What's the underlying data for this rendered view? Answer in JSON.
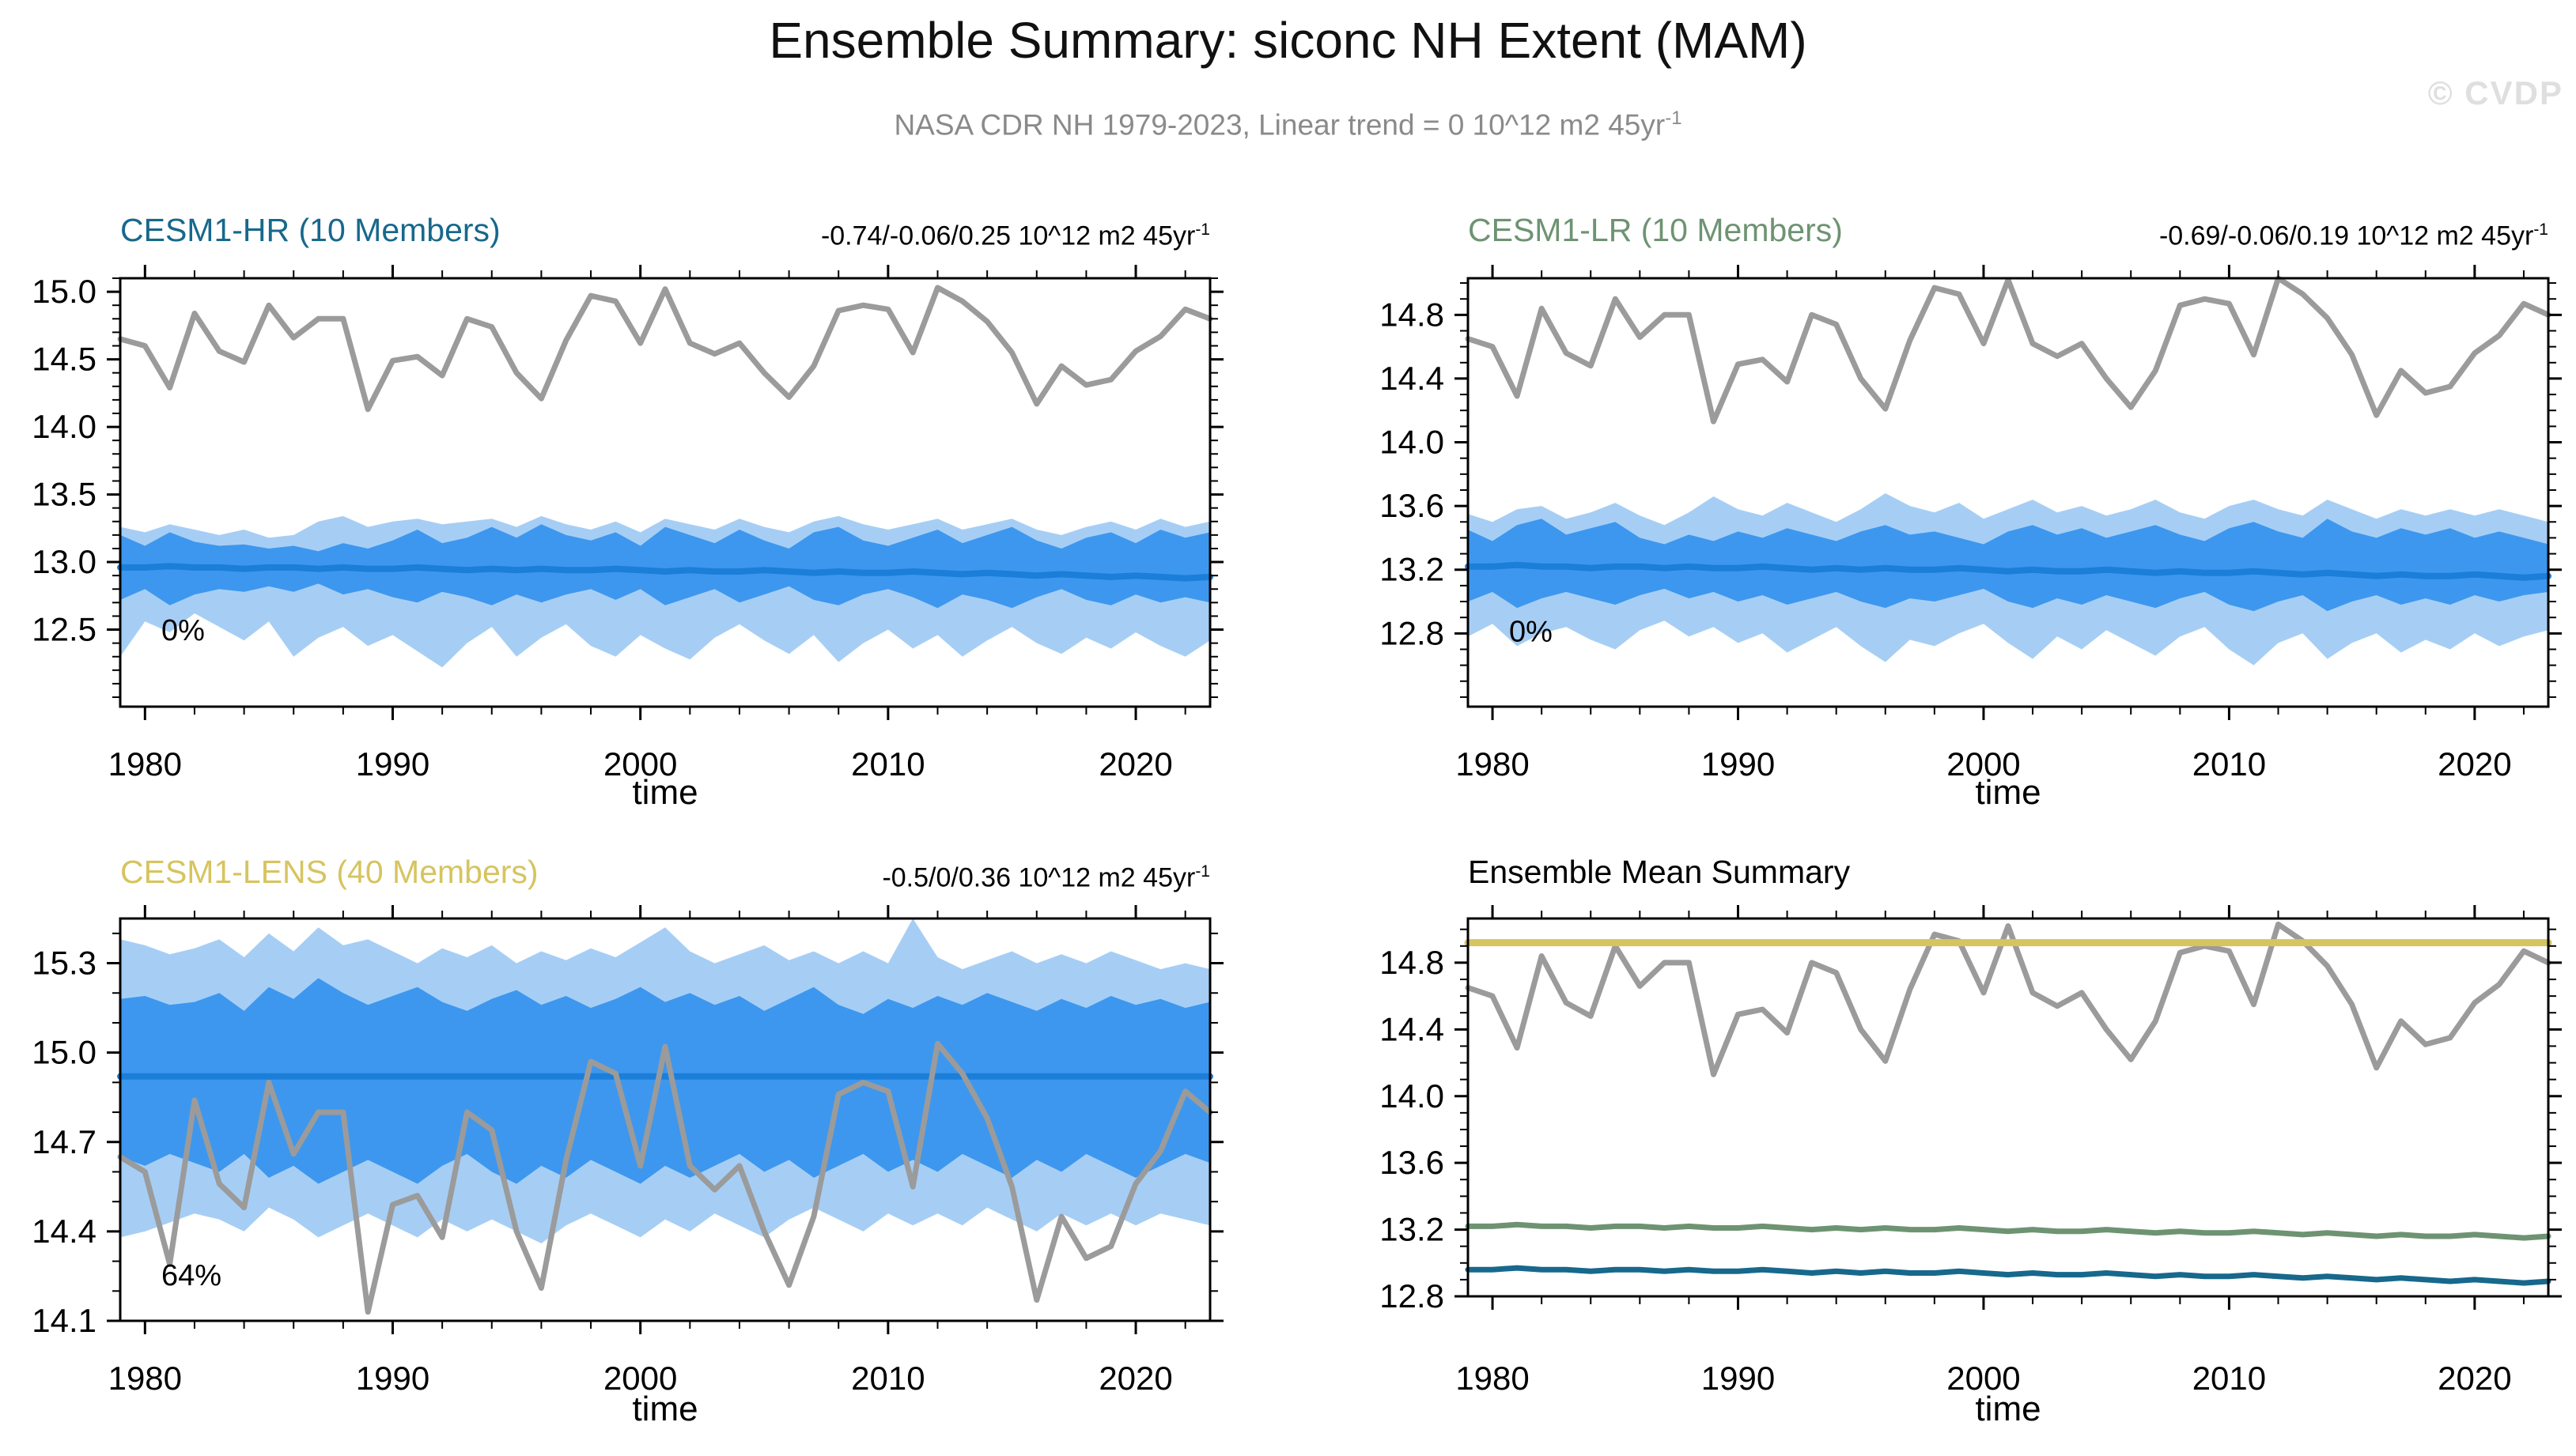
{
  "header": {
    "title": "Ensemble Summary: siconc NH Extent (MAM)",
    "subtitle_main": "NASA CDR NH 1979-2023, Linear trend = 0 10^12 m2 45yr",
    "subtitle_sup": "-1",
    "watermark": "© CVDP"
  },
  "colors": {
    "band_outer": "#a6cef5",
    "band_inner": "#3d97ee",
    "ensemble_mean": "#1b7ed9",
    "observation": "#9b9b9b",
    "frame": "#000000",
    "hr": "#17688c",
    "lr": "#6e9372",
    "lens": "#d6c45f",
    "subtitle": "#8a8a8a",
    "watermark": "#dfdfdf"
  },
  "chart_data": {
    "type": "line",
    "x_label": "time",
    "year_start": 1979,
    "year_end": 2023,
    "x_ticks": [
      1980,
      1990,
      2000,
      2010,
      2020
    ],
    "obs_name": "NASA CDR NH",
    "obs": [
      14.65,
      14.6,
      14.29,
      14.84,
      14.56,
      14.48,
      14.9,
      14.66,
      14.8,
      14.8,
      14.13,
      14.49,
      14.52,
      14.38,
      14.8,
      14.74,
      14.4,
      14.21,
      14.64,
      14.97,
      14.93,
      14.62,
      15.02,
      14.62,
      14.54,
      14.62,
      14.4,
      14.22,
      14.45,
      14.86,
      14.9,
      14.87,
      14.55,
      15.03,
      14.93,
      14.78,
      14.55,
      14.17,
      14.45,
      14.31,
      14.35,
      14.56,
      14.67,
      14.87,
      14.8
    ],
    "panels": [
      {
        "id": "hr",
        "title": "CESM1-HR (10 Members)",
        "title_color": "#17688c",
        "trend_main": "-0.74/-0.06/0.25 10^12 m2 45yr",
        "trend_sup": "-1",
        "annotation": {
          "text": "0%",
          "y": 12.42
        },
        "ylim": [
          11.93,
          15.1
        ],
        "yticks": [
          12.5,
          13.0,
          13.5,
          14.0,
          14.5,
          15.0
        ],
        "ytick_labels": [
          "12.5",
          "13.0",
          "13.5",
          "14.0",
          "14.5",
          "15.0"
        ],
        "mean": [
          12.96,
          12.96,
          12.97,
          12.96,
          12.96,
          12.95,
          12.96,
          12.96,
          12.95,
          12.96,
          12.95,
          12.95,
          12.96,
          12.95,
          12.94,
          12.95,
          12.94,
          12.95,
          12.94,
          12.94,
          12.95,
          12.94,
          12.93,
          12.94,
          12.93,
          12.93,
          12.94,
          12.93,
          12.92,
          12.93,
          12.92,
          12.92,
          12.93,
          12.92,
          12.91,
          12.92,
          12.91,
          12.9,
          12.91,
          12.9,
          12.89,
          12.9,
          12.89,
          12.88,
          12.89
        ],
        "inner_top": [
          13.2,
          13.12,
          13.22,
          13.15,
          13.12,
          13.13,
          13.1,
          13.12,
          13.08,
          13.14,
          13.1,
          13.16,
          13.24,
          13.14,
          13.18,
          13.26,
          13.18,
          13.28,
          13.2,
          13.16,
          13.22,
          13.12,
          13.26,
          13.2,
          13.14,
          13.24,
          13.16,
          13.1,
          13.22,
          13.26,
          13.16,
          13.12,
          13.18,
          13.24,
          13.14,
          13.2,
          13.26,
          13.16,
          13.1,
          13.18,
          13.22,
          13.14,
          13.24,
          13.18,
          13.22
        ],
        "inner_bot": [
          12.72,
          12.8,
          12.68,
          12.76,
          12.8,
          12.78,
          12.82,
          12.78,
          12.84,
          12.76,
          12.8,
          12.74,
          12.7,
          12.78,
          12.74,
          12.68,
          12.76,
          12.7,
          12.76,
          12.8,
          12.72,
          12.8,
          12.68,
          12.74,
          12.8,
          12.7,
          12.76,
          12.82,
          12.72,
          12.68,
          12.76,
          12.8,
          12.74,
          12.66,
          12.76,
          12.72,
          12.66,
          12.74,
          12.8,
          12.72,
          12.68,
          12.76,
          12.7,
          12.74,
          12.7
        ],
        "outer_top": [
          13.26,
          13.22,
          13.28,
          13.24,
          13.2,
          13.24,
          13.18,
          13.2,
          13.3,
          13.34,
          13.26,
          13.3,
          13.32,
          13.28,
          13.3,
          13.32,
          13.26,
          13.34,
          13.28,
          13.24,
          13.3,
          13.22,
          13.32,
          13.28,
          13.24,
          13.32,
          13.26,
          13.22,
          13.3,
          13.34,
          13.28,
          13.24,
          13.28,
          13.32,
          13.24,
          13.28,
          13.32,
          13.24,
          13.2,
          13.26,
          13.3,
          13.24,
          13.32,
          13.26,
          13.3
        ],
        "outer_bot": [
          12.3,
          12.56,
          12.48,
          12.62,
          12.52,
          12.42,
          12.56,
          12.3,
          12.44,
          12.52,
          12.38,
          12.46,
          12.34,
          12.22,
          12.4,
          12.52,
          12.3,
          12.44,
          12.54,
          12.38,
          12.3,
          12.46,
          12.36,
          12.28,
          12.44,
          12.54,
          12.42,
          12.32,
          12.46,
          12.26,
          12.4,
          12.5,
          12.36,
          12.46,
          12.3,
          12.42,
          12.52,
          12.4,
          12.32,
          12.44,
          12.36,
          12.48,
          12.38,
          12.3,
          12.42
        ]
      },
      {
        "id": "lr",
        "title": "CESM1-LR (10 Members)",
        "title_color": "#6e9372",
        "trend_main": "-0.69/-0.06/0.19 10^12 m2 45yr",
        "trend_sup": "-1",
        "annotation": {
          "text": "0%",
          "y": 12.75
        },
        "ylim": [
          12.34,
          15.03
        ],
        "yticks": [
          12.8,
          13.2,
          13.6,
          14.0,
          14.4,
          14.8
        ],
        "ytick_labels": [
          "12.8",
          "13.2",
          "13.6",
          "14.0",
          "14.4",
          "14.8"
        ],
        "mean": [
          13.22,
          13.22,
          13.23,
          13.22,
          13.22,
          13.21,
          13.22,
          13.22,
          13.21,
          13.22,
          13.21,
          13.21,
          13.22,
          13.21,
          13.2,
          13.21,
          13.2,
          13.21,
          13.2,
          13.2,
          13.21,
          13.2,
          13.19,
          13.2,
          13.19,
          13.19,
          13.2,
          13.19,
          13.18,
          13.19,
          13.18,
          13.18,
          13.19,
          13.18,
          13.17,
          13.18,
          13.17,
          13.16,
          13.17,
          13.16,
          13.16,
          13.17,
          13.16,
          13.15,
          13.16
        ],
        "inner_top": [
          13.45,
          13.38,
          13.48,
          13.52,
          13.42,
          13.46,
          13.5,
          13.4,
          13.36,
          13.42,
          13.38,
          13.44,
          13.4,
          13.46,
          13.42,
          13.38,
          13.44,
          13.48,
          13.42,
          13.44,
          13.4,
          13.36,
          13.44,
          13.48,
          13.42,
          13.46,
          13.4,
          13.44,
          13.48,
          13.42,
          13.38,
          13.46,
          13.5,
          13.44,
          13.4,
          13.52,
          13.44,
          13.4,
          13.46,
          13.42,
          13.46,
          13.4,
          13.44,
          13.4,
          13.36
        ],
        "inner_bot": [
          13.0,
          13.06,
          12.96,
          13.02,
          13.06,
          13.02,
          12.98,
          13.04,
          13.08,
          13.02,
          13.06,
          13.0,
          13.04,
          12.98,
          13.02,
          13.06,
          13.0,
          12.96,
          13.02,
          13.0,
          13.04,
          13.08,
          13.0,
          12.96,
          13.02,
          12.98,
          13.04,
          13.0,
          12.96,
          13.02,
          13.06,
          12.98,
          12.94,
          13.0,
          13.04,
          12.94,
          13.0,
          13.04,
          12.98,
          13.02,
          12.98,
          13.04,
          13.0,
          13.04,
          13.06
        ],
        "outer_top": [
          13.55,
          13.5,
          13.58,
          13.6,
          13.52,
          13.56,
          13.62,
          13.54,
          13.48,
          13.56,
          13.66,
          13.58,
          13.54,
          13.62,
          13.56,
          13.5,
          13.58,
          13.68,
          13.6,
          13.56,
          13.62,
          13.52,
          13.58,
          13.64,
          13.56,
          13.6,
          13.54,
          13.58,
          13.64,
          13.56,
          13.52,
          13.6,
          13.64,
          13.58,
          13.54,
          13.64,
          13.58,
          13.52,
          13.58,
          13.54,
          13.58,
          13.54,
          13.58,
          13.54,
          13.5
        ],
        "outer_bot": [
          12.78,
          12.86,
          12.72,
          12.8,
          12.84,
          12.76,
          12.7,
          12.82,
          12.88,
          12.78,
          12.84,
          12.74,
          12.8,
          12.68,
          12.76,
          12.84,
          12.72,
          12.62,
          12.76,
          12.72,
          12.8,
          12.86,
          12.74,
          12.64,
          12.78,
          12.7,
          12.82,
          12.74,
          12.66,
          12.78,
          12.84,
          12.7,
          12.6,
          12.74,
          12.8,
          12.64,
          12.74,
          12.8,
          12.68,
          12.76,
          12.7,
          12.8,
          12.72,
          12.78,
          12.82
        ]
      },
      {
        "id": "lens",
        "title": "CESM1-LENS (40 Members)",
        "title_color": "#d6c45f",
        "trend_main": "-0.5/0/0.36 10^12 m2 45yr",
        "trend_sup": "-1",
        "annotation": {
          "text": "64%",
          "y": 14.22
        },
        "ylim": [
          14.1,
          15.45
        ],
        "yticks": [
          14.1,
          14.4,
          14.7,
          15.0,
          15.3
        ],
        "ytick_labels": [
          "14.1",
          "14.4",
          "14.7",
          "15.0",
          "15.3"
        ],
        "mean": [
          14.92,
          14.92,
          14.92,
          14.92,
          14.92,
          14.92,
          14.92,
          14.92,
          14.92,
          14.92,
          14.92,
          14.92,
          14.92,
          14.92,
          14.92,
          14.92,
          14.92,
          14.92,
          14.92,
          14.92,
          14.92,
          14.92,
          14.92,
          14.92,
          14.92,
          14.92,
          14.92,
          14.92,
          14.92,
          14.92,
          14.92,
          14.92,
          14.92,
          14.92,
          14.92,
          14.92,
          14.92,
          14.92,
          14.92,
          14.92,
          14.92,
          14.92,
          14.92,
          14.92,
          14.92
        ],
        "inner_top": [
          15.18,
          15.19,
          15.16,
          15.17,
          15.2,
          15.14,
          15.22,
          15.18,
          15.25,
          15.2,
          15.16,
          15.19,
          15.22,
          15.17,
          15.14,
          15.18,
          15.21,
          15.16,
          15.19,
          15.15,
          15.18,
          15.22,
          15.17,
          15.2,
          15.16,
          15.19,
          15.14,
          15.18,
          15.22,
          15.16,
          15.13,
          15.18,
          15.15,
          15.19,
          15.16,
          15.2,
          15.17,
          15.14,
          15.18,
          15.15,
          15.19,
          15.16,
          15.18,
          15.15,
          15.17
        ],
        "inner_bot": [
          14.65,
          14.62,
          14.66,
          14.63,
          14.6,
          14.66,
          14.58,
          14.62,
          14.56,
          14.6,
          14.64,
          14.6,
          14.56,
          14.62,
          14.66,
          14.6,
          14.56,
          14.62,
          14.58,
          14.64,
          14.6,
          14.56,
          14.62,
          14.58,
          14.62,
          14.66,
          14.6,
          14.64,
          14.58,
          14.62,
          14.66,
          14.6,
          14.64,
          14.6,
          14.66,
          14.62,
          14.58,
          14.64,
          14.6,
          14.66,
          14.62,
          14.58,
          14.62,
          14.66,
          14.63
        ],
        "outer_top": [
          15.38,
          15.36,
          15.33,
          15.35,
          15.38,
          15.32,
          15.4,
          15.34,
          15.42,
          15.36,
          15.38,
          15.34,
          15.3,
          15.35,
          15.32,
          15.36,
          15.3,
          15.34,
          15.31,
          15.35,
          15.32,
          15.37,
          15.42,
          15.34,
          15.3,
          15.33,
          15.36,
          15.31,
          15.34,
          15.3,
          15.34,
          15.3,
          15.45,
          15.32,
          15.28,
          15.31,
          15.34,
          15.3,
          15.33,
          15.3,
          15.34,
          15.31,
          15.28,
          15.3,
          15.28
        ],
        "outer_bot": [
          14.38,
          14.4,
          14.43,
          14.46,
          14.44,
          14.4,
          14.48,
          14.44,
          14.38,
          14.42,
          14.46,
          14.42,
          14.38,
          14.44,
          14.4,
          14.44,
          14.4,
          14.36,
          14.42,
          14.46,
          14.42,
          14.38,
          14.44,
          14.4,
          14.46,
          14.42,
          14.38,
          14.44,
          14.48,
          14.44,
          14.4,
          14.46,
          14.42,
          14.46,
          14.42,
          14.48,
          14.44,
          14.4,
          14.46,
          14.42,
          14.46,
          14.42,
          14.46,
          14.44,
          14.42
        ]
      },
      {
        "id": "summary",
        "title": "Ensemble Mean Summary",
        "title_color": "#000000",
        "annotation": null,
        "ylim": [
          12.8,
          15.065
        ],
        "yticks": [
          12.8,
          13.2,
          13.6,
          14.0,
          14.4,
          14.8
        ],
        "ytick_labels": [
          "12.8",
          "13.2",
          "13.6",
          "14.0",
          "14.4",
          "14.8"
        ],
        "lines": [
          {
            "ref": "obs",
            "label": "NASA CDR",
            "width": 7
          },
          {
            "ref": "lens",
            "label": "CESM1-LENS",
            "width": 9
          },
          {
            "ref": "lr",
            "label": "CESM1-LR",
            "width": 7
          },
          {
            "ref": "hr",
            "label": "CESM1-HR",
            "width": 7
          }
        ]
      }
    ]
  }
}
